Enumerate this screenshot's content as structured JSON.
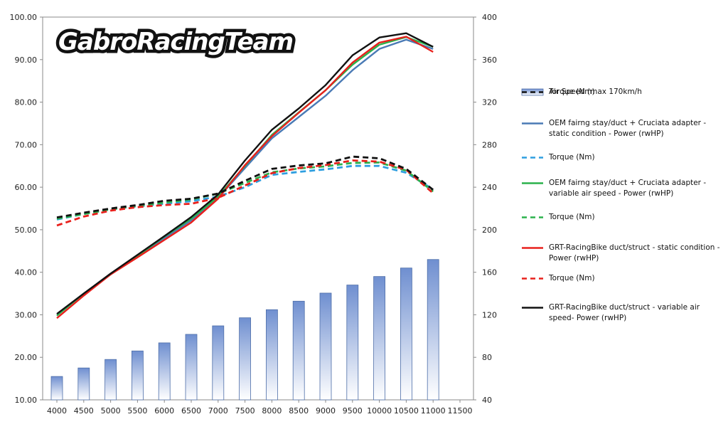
{
  "logo": {
    "text": "GabroRacingTeam"
  },
  "chart_data": {
    "type": "bar+line",
    "x": [
      4000,
      4500,
      5000,
      5500,
      6000,
      6500,
      7000,
      7500,
      8000,
      8500,
      9000,
      9500,
      10000,
      10500,
      11000
    ],
    "x_ticks": [
      "4000",
      "4500",
      "5000",
      "5500",
      "6000",
      "6500",
      "7000",
      "7500",
      "8000",
      "8500",
      "9000",
      "9500",
      "10000",
      "10500",
      "11000",
      "11500"
    ],
    "y_left": {
      "min": 10,
      "max": 100,
      "ticks": [
        "10.00",
        "20.00",
        "30.00",
        "40.00",
        "50.00",
        "60.00",
        "70.00",
        "80.00",
        "90.00",
        "100.00"
      ]
    },
    "y_right": {
      "min": 40,
      "max": 400,
      "ticks": [
        "40",
        "80",
        "120",
        "160",
        "200",
        "240",
        "280",
        "320",
        "360",
        "400"
      ]
    },
    "bars": {
      "name": "Air Speed (max 170km/h",
      "values": [
        15.5,
        17.5,
        19.5,
        21.5,
        23.4,
        25.4,
        27.4,
        29.3,
        31.2,
        33.2,
        35.1,
        37.0,
        39.0,
        41.0,
        43.0
      ]
    },
    "series": [
      {
        "name": "OEM fairng stay/duct + Cruciata adapter - static condition - Power (rwHP)",
        "color": "#4a7ab5",
        "dash": false,
        "values": [
          29.8,
          35.0,
          39.5,
          43.8,
          48.0,
          52.2,
          57.5,
          64.5,
          71.5,
          76.5,
          81.5,
          87.5,
          92.5,
          94.7,
          92.5
        ]
      },
      {
        "name": "Torque (Nm)",
        "color": "#2f9fe0",
        "dash": true,
        "values": [
          52.4,
          53.7,
          54.8,
          55.5,
          56.1,
          56.7,
          57.8,
          60.0,
          62.9,
          63.6,
          64.2,
          65.0,
          65.0,
          63.4,
          59.5
        ]
      },
      {
        "name": "OEM fairng stay/duct + Cruciata adapter - variable air speed - Power (rwHP)",
        "color": "#2bb24c",
        "dash": false,
        "values": [
          29.8,
          35.0,
          39.5,
          43.9,
          48.4,
          52.6,
          57.8,
          65.0,
          72.3,
          77.6,
          82.8,
          88.8,
          93.5,
          95.3,
          93.0
        ]
      },
      {
        "name": "Torque (Nm)",
        "color": "#2bb24c",
        "dash": true,
        "values": [
          52.6,
          53.7,
          54.8,
          55.6,
          56.4,
          57.1,
          58.5,
          61.0,
          63.5,
          64.4,
          64.9,
          65.7,
          65.8,
          63.9,
          59.0
        ]
      },
      {
        "name": "GRT-RacingBike duct/struct - static condition - Power (rwHP)",
        "color": "#e8201c",
        "dash": false,
        "values": [
          29.2,
          34.5,
          39.5,
          43.5,
          47.6,
          51.7,
          57.3,
          65.2,
          72.0,
          77.5,
          82.8,
          89.3,
          94.0,
          95.4,
          91.8
        ]
      },
      {
        "name": "Torque (Nm)",
        "color": "#e8201c",
        "dash": true,
        "values": [
          51.0,
          53.1,
          54.5,
          55.3,
          55.8,
          56.1,
          57.5,
          60.4,
          63.3,
          64.5,
          65.2,
          66.3,
          66.0,
          64.1,
          58.6
        ]
      },
      {
        "name": "GRT-RacingBike duct/struct  - variable air speed- Power (rwHP)",
        "color": "#111111",
        "dash": false,
        "values": [
          30.2,
          35.0,
          39.7,
          44.1,
          48.5,
          53.0,
          58.3,
          66.3,
          73.5,
          78.5,
          84.0,
          91.0,
          95.2,
          96.2,
          93.0
        ]
      },
      {
        "name": "Torque (Nm)",
        "color": "#111111",
        "dash": true,
        "values": [
          52.9,
          54.0,
          55.0,
          55.8,
          56.8,
          57.3,
          58.5,
          61.5,
          64.3,
          65.1,
          65.6,
          67.2,
          66.8,
          64.3,
          59.4
        ]
      }
    ],
    "legend_position": "right",
    "grid": false
  }
}
